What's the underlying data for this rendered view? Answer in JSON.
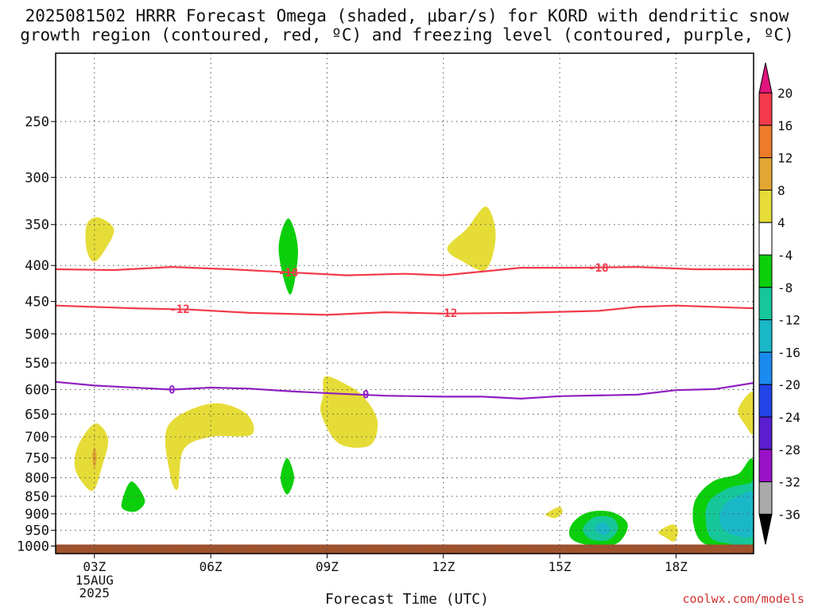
{
  "title_line1": "2025081502 HRRR Forecast Omega (shaded, μbar/s) for KORD with dendritic snow",
  "title_line2": "growth region (contoured, red, ºC) and freezing level (contoured, purple, ºC)",
  "credit": "coolwx.com/models",
  "chart_data": {
    "type": "contour",
    "xlabel": "Forecast Time (UTC)",
    "x_ticks": [
      {
        "hour": 3,
        "label": "03Z"
      },
      {
        "hour": 6,
        "label": "06Z"
      },
      {
        "hour": 9,
        "label": "09Z"
      },
      {
        "hour": 12,
        "label": "12Z"
      },
      {
        "hour": 15,
        "label": "15Z"
      },
      {
        "hour": 18,
        "label": "18Z"
      }
    ],
    "x_date_label": [
      "15AUG",
      "2025"
    ],
    "xlim": [
      2,
      20
    ],
    "y_ticks": [
      250,
      300,
      350,
      400,
      450,
      500,
      550,
      600,
      650,
      700,
      750,
      800,
      850,
      900,
      950,
      1000
    ],
    "ylim_hPa": [
      200,
      1025
    ],
    "ground_level_hPa": 995,
    "colorbar": {
      "labels": [
        "20",
        "16",
        "12",
        "8",
        "4",
        "-4",
        "-8",
        "-12",
        "-16",
        "-20",
        "-24",
        "-28",
        "-32",
        "-36"
      ],
      "colors": [
        "#f23a4a",
        "#ee7b2c",
        "#e2a633",
        "#e6dc37",
        "#ffffff",
        "#0ccf0c",
        "#16c79a",
        "#1ab7c7",
        "#1b8af0",
        "#2344e8",
        "#5a1ed0",
        "#9a12c8",
        "#aaaaaa"
      ],
      "top_arrow_color": "#e0157e",
      "bottom_arrow_color": "#000000"
    },
    "contour_lines": [
      {
        "label": "-18",
        "color": "#f23a4a",
        "points": [
          [
            2,
            405
          ],
          [
            3.5,
            406
          ],
          [
            5,
            402
          ],
          [
            6.5,
            405
          ],
          [
            8,
            409
          ],
          [
            9.5,
            413
          ],
          [
            11,
            411
          ],
          [
            12,
            413
          ],
          [
            13,
            408
          ],
          [
            14,
            403
          ],
          [
            15.5,
            403
          ],
          [
            17,
            402
          ],
          [
            18.5,
            405
          ],
          [
            20,
            405
          ]
        ],
        "label_positions": [
          [
            8,
            409
          ],
          [
            16,
            403
          ]
        ]
      },
      {
        "label": "-12",
        "color": "#f23a4a",
        "points": [
          [
            2,
            456
          ],
          [
            4,
            460
          ],
          [
            5.5,
            462
          ],
          [
            7,
            467
          ],
          [
            9,
            470
          ],
          [
            10.5,
            466
          ],
          [
            12,
            468
          ],
          [
            14,
            467
          ],
          [
            16,
            464
          ],
          [
            17,
            458
          ],
          [
            18,
            456
          ],
          [
            19.5,
            459
          ],
          [
            20,
            460
          ]
        ],
        "label_positions": [
          [
            5.2,
            461
          ],
          [
            12.1,
            467
          ]
        ]
      },
      {
        "label": "0",
        "color": "#8f1fc0",
        "points": [
          [
            2,
            585
          ],
          [
            3,
            592
          ],
          [
            5,
            600
          ],
          [
            6,
            596
          ],
          [
            7,
            598
          ],
          [
            8,
            603
          ],
          [
            9.3,
            608
          ],
          [
            10.5,
            612
          ],
          [
            12,
            614
          ],
          [
            13,
            614
          ],
          [
            14,
            618
          ],
          [
            15,
            613
          ],
          [
            17,
            610
          ],
          [
            18,
            601
          ],
          [
            19,
            599
          ],
          [
            20,
            587
          ]
        ],
        "label_positions": [
          [
            5,
            600
          ],
          [
            10,
            609
          ]
        ]
      }
    ],
    "shaded_regions": [
      {
        "level": "4 to 8",
        "color": "#e6dc37",
        "points": [
          [
            2.8,
            350
          ],
          [
            3.1,
            342
          ],
          [
            3.5,
            355
          ],
          [
            3.3,
            378
          ],
          [
            3.0,
            395
          ],
          [
            2.8,
            380
          ]
        ]
      },
      {
        "level": "4 to 8",
        "color": "#e6dc37",
        "points": [
          [
            12.1,
            378
          ],
          [
            12.6,
            355
          ],
          [
            13.1,
            330
          ],
          [
            13.35,
            362
          ],
          [
            13.1,
            405
          ],
          [
            12.5,
            395
          ]
        ]
      },
      {
        "level": "-4 to -8",
        "color": "#0ccf0c",
        "points": [
          [
            8,
            343
          ],
          [
            8.25,
            380
          ],
          [
            8.05,
            440
          ],
          [
            7.75,
            380
          ]
        ]
      },
      {
        "level": "4 to 8",
        "color": "#e6dc37",
        "points": [
          [
            2.5,
            745
          ],
          [
            2.7,
            700
          ],
          [
            3.05,
            670
          ],
          [
            3.35,
            705
          ],
          [
            3.2,
            770
          ],
          [
            2.95,
            835
          ],
          [
            2.55,
            790
          ]
        ]
      },
      {
        "level": "8 to 12",
        "color": "#e2a633",
        "points": [
          [
            3,
            725
          ],
          [
            3.06,
            745
          ],
          [
            3,
            775
          ],
          [
            2.94,
            745
          ]
        ]
      },
      {
        "level": "-4 to -8",
        "color": "#0ccf0c",
        "points": [
          [
            3.7,
            870
          ],
          [
            3.95,
            810
          ],
          [
            4.3,
            860
          ],
          [
            4.1,
            892
          ],
          [
            3.8,
            890
          ]
        ]
      },
      {
        "level": "4 to 8",
        "color": "#e6dc37",
        "points": [
          [
            4.9,
            675
          ],
          [
            6,
            628
          ],
          [
            6.9,
            648
          ],
          [
            7.05,
            695
          ],
          [
            6,
            700
          ],
          [
            5.3,
            730
          ],
          [
            5.15,
            830
          ],
          [
            4.95,
            790
          ]
        ]
      },
      {
        "level": "-4 to -8",
        "color": "#0ccf0c",
        "points": [
          [
            7.8,
            800
          ],
          [
            7.97,
            750
          ],
          [
            8.15,
            800
          ],
          [
            7.97,
            845
          ]
        ]
      },
      {
        "level": "4 to 8",
        "color": "#e6dc37",
        "points": [
          [
            8.9,
            610
          ],
          [
            8.95,
            575
          ],
          [
            9.5,
            590
          ],
          [
            9.95,
            615
          ],
          [
            10.3,
            665
          ],
          [
            10.1,
            720
          ],
          [
            9.3,
            715
          ],
          [
            8.85,
            650
          ]
        ]
      },
      {
        "level": "4 to 8",
        "color": "#e6dc37",
        "points": [
          [
            14.65,
            900
          ],
          [
            14.98,
            880
          ],
          [
            15.07,
            895
          ],
          [
            14.9,
            912
          ],
          [
            14.7,
            908
          ]
        ]
      },
      {
        "level": "-4 to -8",
        "color": "#0ccf0c",
        "points": [
          [
            15.25,
            965
          ],
          [
            15.35,
            925
          ],
          [
            15.75,
            895
          ],
          [
            16.35,
            895
          ],
          [
            16.75,
            930
          ],
          [
            16.55,
            985
          ],
          [
            16.1,
            1000
          ],
          [
            15.5,
            990
          ]
        ]
      },
      {
        "level": "-8 to -12",
        "color": "#16c79a",
        "points": [
          [
            15.6,
            945
          ],
          [
            15.9,
            910
          ],
          [
            16.35,
            912
          ],
          [
            16.5,
            945
          ],
          [
            16.25,
            980
          ],
          [
            15.8,
            978
          ]
        ]
      },
      {
        "level": "-12 to -16",
        "color": "#1ab7c7",
        "points": [
          [
            15.9,
            945
          ],
          [
            16.1,
            925
          ],
          [
            16.3,
            945
          ],
          [
            16.15,
            965
          ]
        ]
      },
      {
        "level": "4 to 8",
        "color": "#e6dc37",
        "points": [
          [
            17.55,
            955
          ],
          [
            17.9,
            932
          ],
          [
            18.05,
            950
          ],
          [
            17.95,
            985
          ],
          [
            17.7,
            970
          ]
        ]
      },
      {
        "level": "4 to 8",
        "color": "#e6dc37",
        "points": [
          [
            19.6,
            640
          ],
          [
            20,
            605
          ],
          [
            20,
            690
          ],
          [
            19.8,
            675
          ]
        ]
      },
      {
        "level": "-4 to -8",
        "color": "#0ccf0c",
        "points": [
          [
            18.5,
            860
          ],
          [
            18.95,
            810
          ],
          [
            19.6,
            790
          ],
          [
            20,
            760
          ],
          [
            20,
            1000
          ],
          [
            19.4,
            1005
          ],
          [
            18.7,
            990
          ],
          [
            18.45,
            930
          ]
        ]
      },
      {
        "level": "-8 to -12",
        "color": "#16c79a",
        "points": [
          [
            18.8,
            875
          ],
          [
            19.3,
            830
          ],
          [
            19.9,
            815
          ],
          [
            20,
            812
          ],
          [
            20,
            985
          ],
          [
            19.3,
            990
          ],
          [
            18.85,
            965
          ]
        ]
      },
      {
        "level": "-12 to -16",
        "color": "#1ab7c7",
        "points": [
          [
            19.2,
            880
          ],
          [
            19.6,
            850
          ],
          [
            20,
            845
          ],
          [
            20,
            960
          ],
          [
            19.5,
            965
          ],
          [
            19.15,
            935
          ]
        ]
      }
    ]
  }
}
